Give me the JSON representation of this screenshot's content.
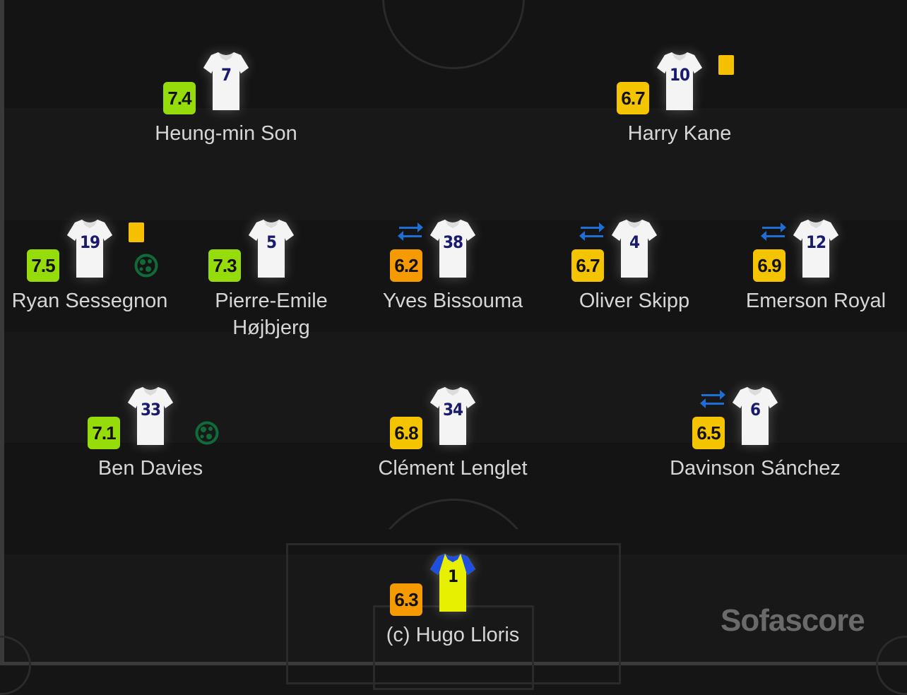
{
  "brand": "Sofascore",
  "colors": {
    "rating_green": "#96dc0a",
    "rating_yellow": "#f5c400",
    "rating_orange": "#f59a00",
    "card_yellow": "#f5c000",
    "goal_green": "#0f6b3a",
    "sub_blue": "#1d6fd6",
    "shirt_number": "#1a1a6e"
  },
  "players": [
    {
      "name": "Heung-min Son",
      "number": "7",
      "rating": "7.4",
      "rating_color": "#96dc0a",
      "yellow_card": false,
      "goal": false,
      "subbed": false,
      "goalkeeper": false
    },
    {
      "name": "Harry Kane",
      "number": "10",
      "rating": "6.7",
      "rating_color": "#f5c400",
      "yellow_card": true,
      "goal": false,
      "subbed": false,
      "goalkeeper": false
    },
    {
      "name": "Ryan Sessegnon",
      "number": "19",
      "rating": "7.5",
      "rating_color": "#96dc0a",
      "yellow_card": true,
      "goal": true,
      "subbed": false,
      "goalkeeper": false
    },
    {
      "name": "Pierre-Emile Højbjerg",
      "number": "5",
      "rating": "7.3",
      "rating_color": "#96dc0a",
      "yellow_card": false,
      "goal": false,
      "subbed": false,
      "goalkeeper": false
    },
    {
      "name": "Yves Bissouma",
      "number": "38",
      "rating": "6.2",
      "rating_color": "#f59a00",
      "yellow_card": false,
      "goal": false,
      "subbed": true,
      "goalkeeper": false
    },
    {
      "name": "Oliver Skipp",
      "number": "4",
      "rating": "6.7",
      "rating_color": "#f5c400",
      "yellow_card": false,
      "goal": false,
      "subbed": true,
      "goalkeeper": false
    },
    {
      "name": "Emerson Royal",
      "number": "12",
      "rating": "6.9",
      "rating_color": "#f5c400",
      "yellow_card": false,
      "goal": false,
      "subbed": true,
      "goalkeeper": false
    },
    {
      "name": "Ben Davies",
      "number": "33",
      "rating": "7.1",
      "rating_color": "#96dc0a",
      "yellow_card": false,
      "goal": true,
      "subbed": false,
      "goalkeeper": false
    },
    {
      "name": "Clément Lenglet",
      "number": "34",
      "rating": "6.8",
      "rating_color": "#f5c400",
      "yellow_card": false,
      "goal": false,
      "subbed": false,
      "goalkeeper": false
    },
    {
      "name": "Davinson Sánchez",
      "number": "6",
      "rating": "6.5",
      "rating_color": "#f5c400",
      "yellow_card": false,
      "goal": false,
      "subbed": true,
      "goalkeeper": false
    },
    {
      "name": "(c) Hugo Lloris",
      "number": "1",
      "rating": "6.3",
      "rating_color": "#f59a00",
      "yellow_card": false,
      "goal": false,
      "subbed": false,
      "goalkeeper": true
    }
  ]
}
